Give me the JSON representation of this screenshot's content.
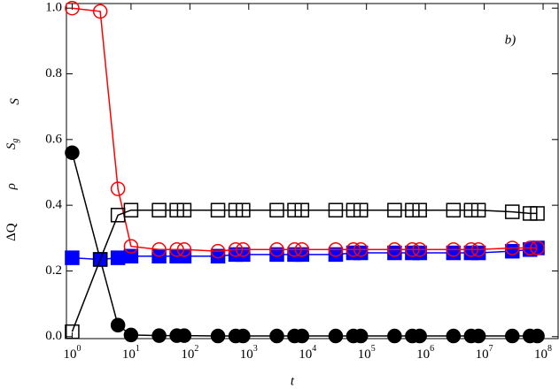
{
  "chart_data": {
    "type": "line",
    "xscale": "log",
    "xlabel": "t",
    "ylabels": [
      {
        "text": "ΔQ"
      },
      {
        "text": "ρ"
      },
      {
        "text": "S",
        "sub": "g"
      },
      {
        "text": "S"
      }
    ],
    "annotation": "b)",
    "x": [
      1,
      3,
      6,
      10,
      30,
      60,
      80,
      300,
      600,
      800,
      3000,
      6000,
      8000,
      30000,
      60000,
      80000,
      300000,
      600000,
      800000,
      3000000,
      6000000,
      8000000,
      30000000,
      60000000,
      80000000
    ],
    "series": [
      {
        "color": "#000000",
        "marker": "circle",
        "filled": true,
        "values": [
          0.56,
          0.235,
          0.035,
          0.005,
          0.003,
          0.003,
          0.003,
          0.002,
          0.002,
          0.002,
          0.002,
          0.002,
          0.002,
          0.002,
          0.002,
          0.002,
          0.002,
          0.002,
          0.002,
          0.002,
          0.002,
          0.002,
          0.002,
          0.002,
          0.002
        ]
      },
      {
        "color": "#0000ff",
        "marker": "square",
        "filled": true,
        "values": [
          0.24,
          0.235,
          0.24,
          0.245,
          0.245,
          0.245,
          0.245,
          0.245,
          0.25,
          0.25,
          0.25,
          0.25,
          0.25,
          0.25,
          0.255,
          0.255,
          0.255,
          0.255,
          0.255,
          0.255,
          0.255,
          0.255,
          0.26,
          0.265,
          0.27
        ]
      },
      {
        "color": "#ff0000",
        "marker": "circle",
        "filled": false,
        "values": [
          1.0,
          0.99,
          0.45,
          0.275,
          0.265,
          0.265,
          0.265,
          0.26,
          0.265,
          0.265,
          0.265,
          0.265,
          0.265,
          0.265,
          0.265,
          0.265,
          0.265,
          0.265,
          0.265,
          0.265,
          0.265,
          0.265,
          0.27,
          0.27,
          0.27
        ]
      },
      {
        "color": "#000000",
        "marker": "square",
        "filled": false,
        "values": [
          0.015,
          0.235,
          0.37,
          0.385,
          0.385,
          0.385,
          0.385,
          0.385,
          0.385,
          0.385,
          0.385,
          0.385,
          0.385,
          0.385,
          0.385,
          0.385,
          0.385,
          0.385,
          0.385,
          0.385,
          0.385,
          0.385,
          0.38,
          0.375,
          0.375
        ]
      }
    ],
    "xlim": [
      0.8,
      180000000
    ],
    "xticks": [
      {
        "value": 1,
        "label": "10",
        "exponent": "0"
      },
      {
        "value": 10,
        "label": "10",
        "exponent": "1"
      },
      {
        "value": 100,
        "label": "10",
        "exponent": "2"
      },
      {
        "value": 1000,
        "label": "10",
        "exponent": "3"
      },
      {
        "value": 10000,
        "label": "10",
        "exponent": "4"
      },
      {
        "value": 100000,
        "label": "10",
        "exponent": "5"
      },
      {
        "value": 1000000,
        "label": "10",
        "exponent": "6"
      },
      {
        "value": 10000000,
        "label": "10",
        "exponent": "7"
      },
      {
        "value": 100000000,
        "label": "10",
        "exponent": "8"
      }
    ],
    "ylim": [
      -0.006,
      1.014
    ],
    "yticks": [
      {
        "value": 0,
        "label": "0.0"
      },
      0.2,
      0.4,
      0.6,
      0.8,
      {
        "value": 1,
        "label": "1.0"
      }
    ]
  }
}
